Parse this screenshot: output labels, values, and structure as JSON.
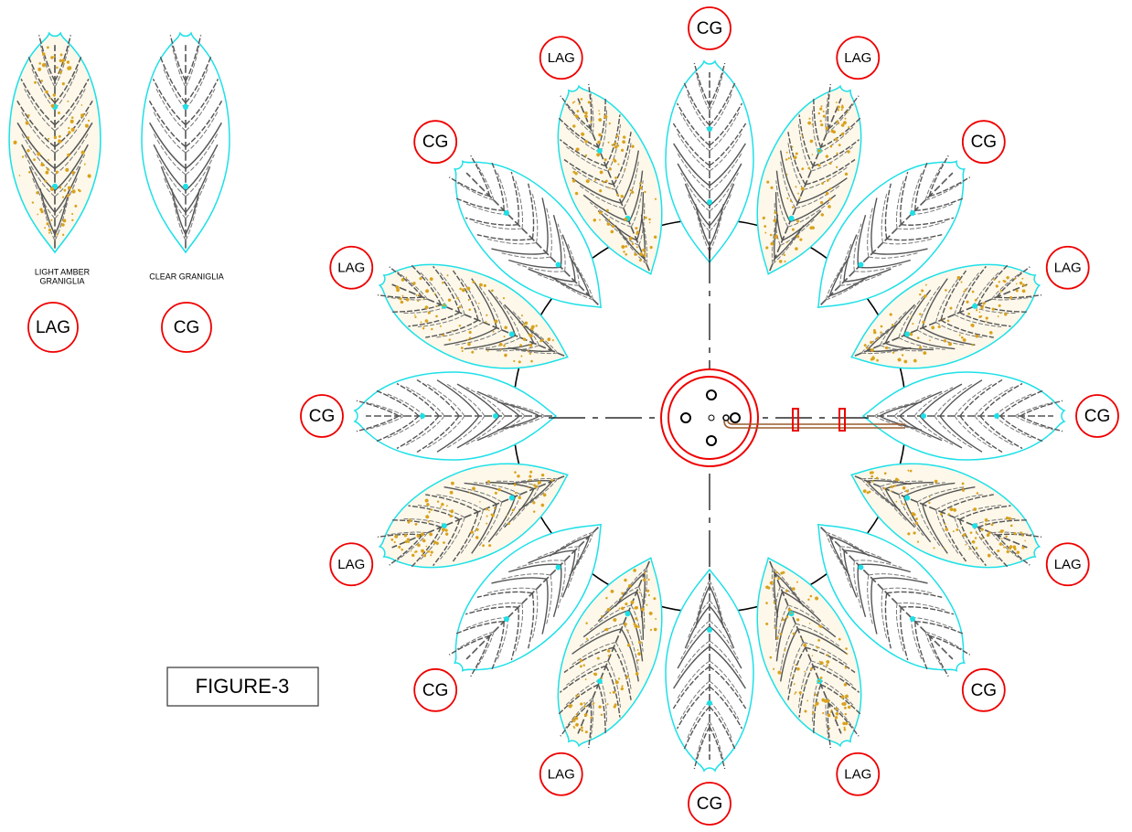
{
  "legend": [
    {
      "name_lines": [
        "LIGHT AMBER",
        "GRANIGLIA"
      ],
      "code": "LAG"
    },
    {
      "name_lines": [
        "CLEAR GRANIGLIA"
      ],
      "code": "CG"
    }
  ],
  "figure_label": "FIGURE-3",
  "labels": [
    "CG",
    "LAG",
    "CG",
    "LAG",
    "CG",
    "LAG",
    "CG",
    "LAG",
    "CG",
    "LAG",
    "CG",
    "LAG",
    "CG",
    "LAG",
    "CG",
    "LAG"
  ]
}
